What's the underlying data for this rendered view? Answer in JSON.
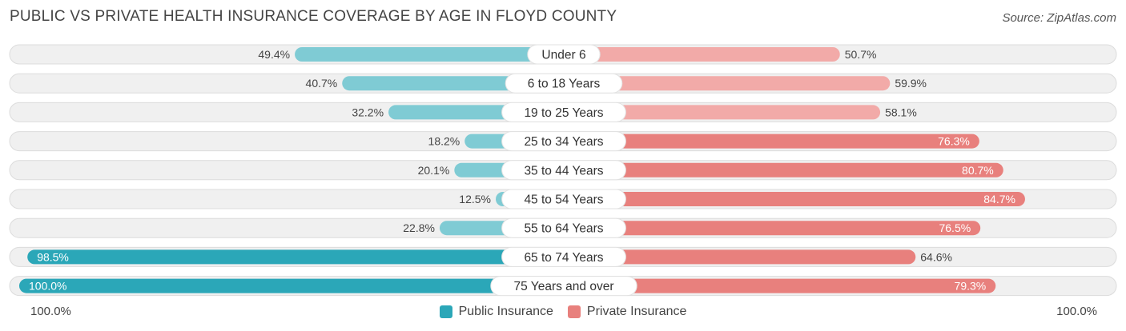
{
  "header": {
    "title": "PUBLIC VS PRIVATE HEALTH INSURANCE COVERAGE BY AGE IN FLOYD COUNTY",
    "source": "Source: ZipAtlas.com"
  },
  "axis": {
    "left_label": "100.0%",
    "right_label": "100.0%"
  },
  "legend": {
    "public_label": "Public Insurance",
    "private_label": "Private Insurance"
  },
  "colors": {
    "public": "#2ba7b8",
    "public_light": "#7fcbd4",
    "private": "#e8807d",
    "private_light": "#f2aaa8",
    "track": "#f0f0f0"
  },
  "chart_data": {
    "type": "bar",
    "orientation": "diverging-horizontal",
    "categories": [
      "Under 6",
      "6 to 18 Years",
      "19 to 25 Years",
      "25 to 34 Years",
      "35 to 44 Years",
      "45 to 54 Years",
      "55 to 64 Years",
      "65 to 74 Years",
      "75 Years and over"
    ],
    "series": [
      {
        "name": "Public Insurance",
        "values": [
          49.4,
          40.7,
          32.2,
          18.2,
          20.1,
          12.5,
          22.8,
          98.5,
          100.0
        ],
        "labels": [
          "49.4%",
          "40.7%",
          "32.2%",
          "18.2%",
          "20.1%",
          "12.5%",
          "22.8%",
          "98.5%",
          "100.0%"
        ]
      },
      {
        "name": "Private Insurance",
        "values": [
          50.7,
          59.9,
          58.1,
          76.3,
          80.7,
          84.7,
          76.5,
          64.6,
          79.3
        ],
        "labels": [
          "50.7%",
          "59.9%",
          "58.1%",
          "76.3%",
          "80.7%",
          "84.7%",
          "76.5%",
          "64.6%",
          "79.3%"
        ]
      }
    ],
    "xlim": [
      0,
      100
    ],
    "legend_position": "bottom-center"
  }
}
